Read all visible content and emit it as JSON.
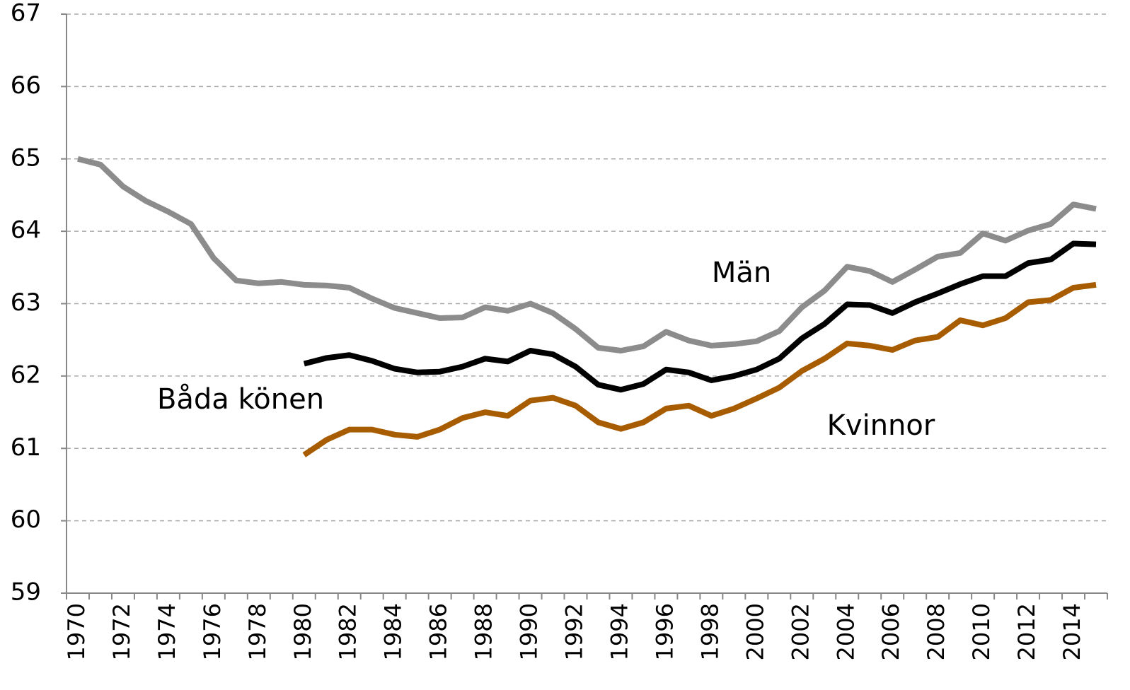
{
  "chart_data": {
    "type": "line",
    "categories": [
      "1970",
      null,
      "1972",
      null,
      "1974",
      null,
      "1976",
      null,
      "1978",
      null,
      "1980",
      null,
      "1982",
      null,
      "1984",
      null,
      "1986",
      null,
      "1988",
      null,
      "1990",
      null,
      "1992",
      null,
      "1994",
      null,
      "1996",
      null,
      "1998",
      null,
      "2000",
      null,
      "2002",
      null,
      "2004",
      null,
      "2006",
      null,
      "2008",
      null,
      "2010",
      null,
      "2012",
      null,
      "2014",
      null
    ],
    "series": [
      {
        "name": "Män",
        "color": "#8c8c8c",
        "values": [
          65.0,
          64.92,
          64.62,
          64.42,
          64.27,
          64.1,
          63.63,
          63.32,
          63.28,
          63.3,
          63.26,
          63.25,
          63.22,
          63.07,
          62.94,
          62.87,
          62.8,
          62.81,
          62.95,
          62.9,
          63.0,
          62.87,
          62.65,
          62.39,
          62.35,
          62.41,
          62.61,
          62.49,
          62.42,
          62.44,
          62.48,
          62.62,
          62.95,
          63.18,
          63.51,
          63.45,
          63.3,
          63.47,
          63.65,
          63.7,
          63.97,
          63.87,
          64.01,
          64.1,
          64.37,
          64.31
        ]
      },
      {
        "name": "Båda könen",
        "color": "#000000",
        "values": [
          null,
          null,
          null,
          null,
          null,
          null,
          null,
          null,
          null,
          null,
          62.17,
          62.25,
          62.29,
          62.21,
          62.1,
          62.05,
          62.06,
          62.13,
          62.24,
          62.2,
          62.35,
          62.3,
          62.13,
          61.88,
          61.81,
          61.89,
          62.09,
          62.05,
          61.94,
          62.0,
          62.09,
          62.24,
          62.52,
          62.72,
          62.99,
          62.98,
          62.87,
          63.02,
          63.14,
          63.27,
          63.38,
          63.38,
          63.56,
          63.61,
          63.83,
          63.82
        ]
      },
      {
        "name": "Kvinnor",
        "color": "#a85c00",
        "values": [
          null,
          null,
          null,
          null,
          null,
          null,
          null,
          null,
          null,
          null,
          60.91,
          61.12,
          61.26,
          61.26,
          61.19,
          61.16,
          61.26,
          61.42,
          61.5,
          61.45,
          61.66,
          61.7,
          61.59,
          61.36,
          61.27,
          61.36,
          61.55,
          61.59,
          61.45,
          61.55,
          61.69,
          61.84,
          62.07,
          62.24,
          62.45,
          62.42,
          62.36,
          62.49,
          62.54,
          62.77,
          62.7,
          62.8,
          63.02,
          63.05,
          63.22,
          63.26
        ]
      }
    ],
    "ylim": [
      59,
      67
    ],
    "yticks": [
      59,
      60,
      61,
      62,
      63,
      64,
      65,
      66,
      67
    ],
    "grid": true
  }
}
